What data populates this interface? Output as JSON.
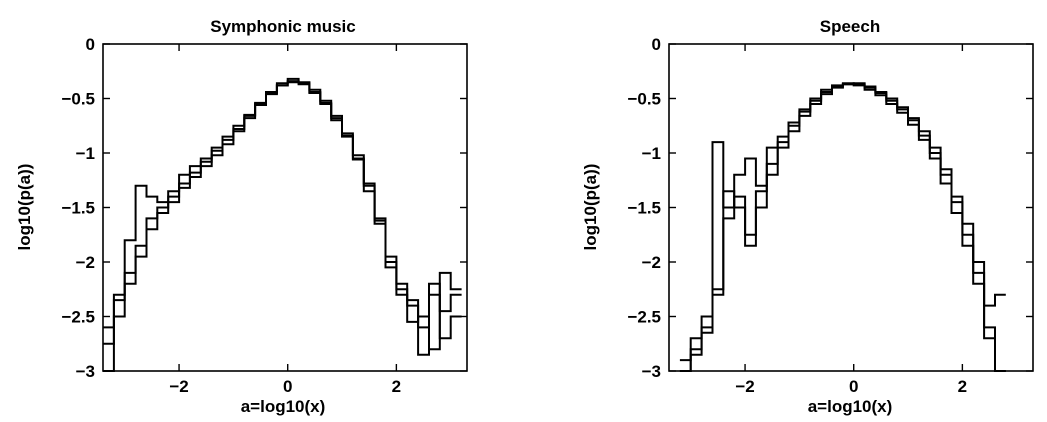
{
  "chart_data": [
    {
      "type": "line",
      "style": "staircase",
      "title": "Symphonic music",
      "xlabel": "a=log10(x)",
      "ylabel": "log10(p(a))",
      "xlim": [
        -3.4,
        3.3
      ],
      "ylim": [
        -3,
        0
      ],
      "xticks": [
        -2,
        0,
        2
      ],
      "xtick_labels": [
        "−2",
        "0",
        "2"
      ],
      "yticks": [
        0,
        -0.5,
        -1,
        -1.5,
        -2,
        -2.5,
        -3
      ],
      "ytick_labels": [
        "0",
        "−0.5",
        "−1",
        "−1.5",
        "−2",
        "−2.5",
        "−3"
      ],
      "grid": false,
      "legend": "none",
      "series": [
        {
          "x": [
            -3.3,
            -3.1,
            -2.9,
            -2.7,
            -2.5,
            -2.3,
            -2.1,
            -1.9,
            -1.7,
            -1.5,
            -1.3,
            -1.1,
            -0.9,
            -0.7,
            -0.5,
            -0.3,
            -0.1,
            0.1,
            0.3,
            0.5,
            0.7,
            0.9,
            1.1,
            1.3,
            1.5,
            1.7,
            1.9,
            2.1,
            2.3,
            2.5,
            2.7,
            2.9,
            3.1
          ],
          "y": [
            -2.75,
            -2.35,
            -1.8,
            -1.3,
            -1.4,
            -1.45,
            -1.35,
            -1.2,
            -1.12,
            -1.05,
            -0.95,
            -0.85,
            -0.75,
            -0.65,
            -0.55,
            -0.45,
            -0.38,
            -0.34,
            -0.36,
            -0.45,
            -0.55,
            -0.7,
            -0.85,
            -1.05,
            -1.35,
            -1.65,
            -2.05,
            -2.3,
            -2.35,
            -2.6,
            -2.8,
            -2.1,
            -2.25
          ]
        },
        {
          "x": [
            -3.3,
            -3.1,
            -2.9,
            -2.7,
            -2.5,
            -2.3,
            -2.1,
            -1.9,
            -1.7,
            -1.5,
            -1.3,
            -1.1,
            -0.9,
            -0.7,
            -0.5,
            -0.3,
            -0.1,
            0.1,
            0.3,
            0.5,
            0.7,
            0.9,
            1.1,
            1.3,
            1.5,
            1.7,
            1.9,
            2.1,
            2.3,
            2.5,
            2.7,
            2.9,
            3.1
          ],
          "y": [
            -2.6,
            -2.3,
            -2.1,
            -1.85,
            -1.6,
            -1.5,
            -1.4,
            -1.28,
            -1.18,
            -1.08,
            -0.98,
            -0.88,
            -0.78,
            -0.66,
            -0.54,
            -0.44,
            -0.36,
            -0.32,
            -0.35,
            -0.42,
            -0.52,
            -0.66,
            -0.82,
            -1.02,
            -1.28,
            -1.6,
            -1.95,
            -2.25,
            -2.55,
            -2.5,
            -2.3,
            -2.7,
            -2.5
          ]
        },
        {
          "x": [
            -3.3,
            -3.1,
            -2.9,
            -2.7,
            -2.5,
            -2.3,
            -2.1,
            -1.9,
            -1.7,
            -1.5,
            -1.3,
            -1.1,
            -0.9,
            -0.7,
            -0.5,
            -0.3,
            -0.1,
            0.1,
            0.3,
            0.5,
            0.7,
            0.9,
            1.1,
            1.3,
            1.5,
            1.7,
            1.9,
            2.1,
            2.3,
            2.5,
            2.7,
            2.9,
            3.1
          ],
          "y": [
            -3.0,
            -2.5,
            -2.2,
            -1.95,
            -1.7,
            -1.55,
            -1.45,
            -1.32,
            -1.22,
            -1.12,
            -1.02,
            -0.92,
            -0.8,
            -0.68,
            -0.56,
            -0.46,
            -0.38,
            -0.35,
            -0.37,
            -0.44,
            -0.54,
            -0.68,
            -0.84,
            -1.06,
            -1.3,
            -1.62,
            -2.0,
            -2.2,
            -2.4,
            -2.85,
            -2.2,
            -2.45,
            -2.3
          ]
        }
      ]
    },
    {
      "type": "line",
      "style": "staircase",
      "title": "Speech",
      "xlabel": "a=log10(x)",
      "ylabel": "log10(p(a))",
      "xlim": [
        -3.4,
        3.3
      ],
      "ylim": [
        -3,
        0
      ],
      "xticks": [
        -2,
        0,
        2
      ],
      "xtick_labels": [
        "−2",
        "0",
        "2"
      ],
      "yticks": [
        0,
        -0.5,
        -1,
        -1.5,
        -2,
        -2.5,
        -3
      ],
      "ytick_labels": [
        "0",
        "−0.5",
        "−1",
        "−1.5",
        "−2",
        "−2.5",
        "−3"
      ],
      "grid": false,
      "legend": "none",
      "series": [
        {
          "x": [
            -3.1,
            -2.9,
            -2.7,
            -2.5,
            -2.3,
            -2.1,
            -1.9,
            -1.7,
            -1.5,
            -1.3,
            -1.1,
            -0.9,
            -0.7,
            -0.5,
            -0.3,
            -0.1,
            0.1,
            0.3,
            0.5,
            0.7,
            0.9,
            1.1,
            1.3,
            1.5,
            1.7,
            1.9,
            2.1,
            2.3,
            2.5,
            2.7
          ],
          "y": [
            -3.0,
            -2.8,
            -2.65,
            -0.9,
            -1.5,
            -1.2,
            -1.05,
            -1.3,
            -0.95,
            -0.85,
            -0.72,
            -0.6,
            -0.5,
            -0.42,
            -0.38,
            -0.36,
            -0.37,
            -0.4,
            -0.45,
            -0.5,
            -0.58,
            -0.68,
            -0.8,
            -0.95,
            -1.15,
            -1.4,
            -1.65,
            -2.0,
            -2.6,
            -3.0
          ]
        },
        {
          "x": [
            -3.1,
            -2.9,
            -2.7,
            -2.5,
            -2.3,
            -2.1,
            -1.9,
            -1.7,
            -1.5,
            -1.3,
            -1.1,
            -0.9,
            -0.7,
            -0.5,
            -0.3,
            -0.1,
            0.1,
            0.3,
            0.5,
            0.7,
            0.9,
            1.1,
            1.3,
            1.5,
            1.7,
            1.9,
            2.1,
            2.3,
            2.5,
            2.7
          ],
          "y": [
            -2.9,
            -2.7,
            -2.5,
            -2.3,
            -1.35,
            -1.5,
            -1.75,
            -1.35,
            -1.1,
            -0.9,
            -0.75,
            -0.62,
            -0.52,
            -0.44,
            -0.39,
            -0.37,
            -0.36,
            -0.39,
            -0.44,
            -0.52,
            -0.6,
            -0.7,
            -0.84,
            -1.0,
            -1.2,
            -1.45,
            -1.75,
            -2.1,
            -2.4,
            -2.3
          ]
        },
        {
          "x": [
            -3.1,
            -2.9,
            -2.7,
            -2.5,
            -2.3,
            -2.1,
            -1.9,
            -1.7,
            -1.5,
            -1.3,
            -1.1,
            -0.9,
            -0.7,
            -0.5,
            -0.3,
            -0.1,
            0.1,
            0.3,
            0.5,
            0.7,
            0.9,
            1.1,
            1.3,
            1.5,
            1.7,
            1.9,
            2.1,
            2.3,
            2.5,
            2.7
          ],
          "y": [
            -3.0,
            -2.85,
            -2.6,
            -2.25,
            -1.6,
            -1.4,
            -1.85,
            -1.5,
            -1.2,
            -0.95,
            -0.8,
            -0.66,
            -0.55,
            -0.46,
            -0.4,
            -0.37,
            -0.38,
            -0.42,
            -0.47,
            -0.55,
            -0.63,
            -0.74,
            -0.88,
            -1.05,
            -1.28,
            -1.55,
            -1.85,
            -2.2,
            -2.7,
            -3.0
          ]
        }
      ]
    }
  ]
}
